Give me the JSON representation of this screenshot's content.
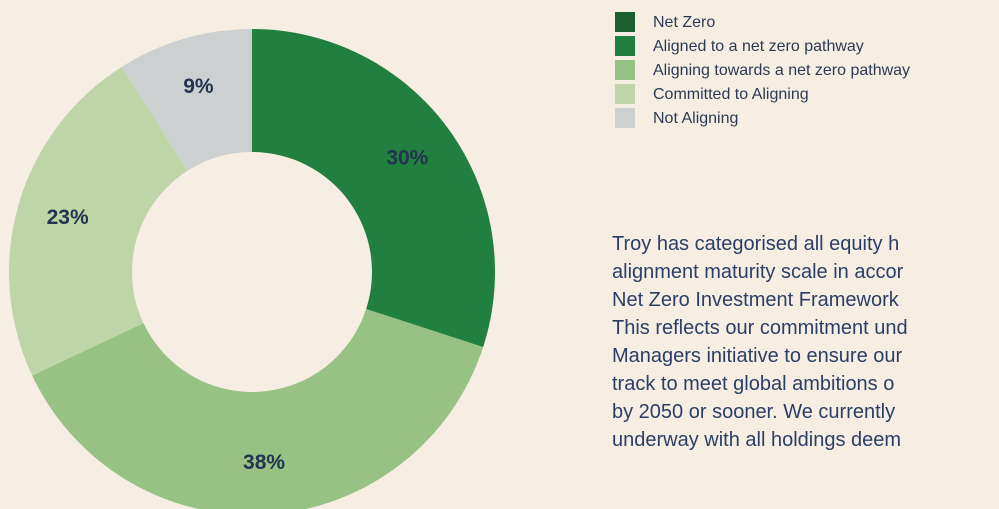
{
  "chart_data": {
    "type": "donut",
    "categories": [
      "Net Zero",
      "Aligned to a net zero pathway",
      "Aligning towards a net zero pathway",
      "Committed to Aligning",
      "Not Aligning"
    ],
    "values": [
      0,
      30,
      38,
      23,
      9
    ],
    "value_labels": [
      null,
      "30%",
      "38%",
      "23%",
      "9%"
    ],
    "colors": [
      "#1b5e30",
      "#21803f",
      "#97c283",
      "#bfd5a8",
      "#cdd0d0"
    ]
  },
  "paragraph": {
    "lines": [
      "Troy has categorised all equity h",
      "alignment maturity scale in accor",
      "Net Zero Investment Framework",
      "This reflects our commitment und",
      "Managers initiative to ensure our",
      "track to meet global ambitions o",
      "by 2050 or sooner. We currently",
      "underway with all holdings deem"
    ]
  }
}
